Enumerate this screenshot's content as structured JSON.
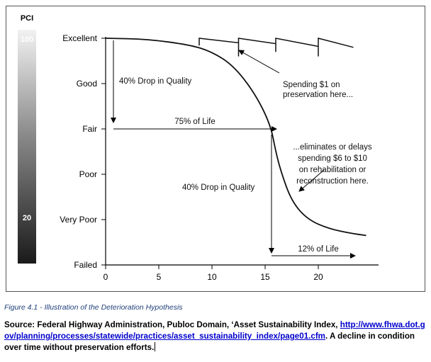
{
  "chart_data": {
    "type": "line",
    "title": "",
    "xlabel": "",
    "ylabel": "",
    "pci_bar": {
      "label": "PCI",
      "top_value": "100",
      "bottom_value": "20"
    },
    "y_categories": [
      "Excellent",
      "Good",
      "Fair",
      "Poor",
      "Very Poor",
      "Failed"
    ],
    "y_range": [
      0,
      5
    ],
    "x_range": [
      0,
      25
    ],
    "x_ticks": [
      0,
      5,
      10,
      15,
      20
    ],
    "x_tick_labels": [
      "0",
      "5",
      "10",
      "15",
      "20"
    ],
    "series": [
      {
        "points": [
          [
            0,
            5
          ],
          [
            4,
            4.98
          ],
          [
            8,
            4.85
          ],
          [
            10,
            4.7
          ],
          [
            12,
            4.4
          ],
          [
            14,
            3.8
          ],
          [
            15.5,
            3.1
          ],
          [
            16,
            2.5
          ],
          [
            16.5,
            2.05
          ],
          [
            17.5,
            1.4
          ],
          [
            19,
            1.0
          ],
          [
            21,
            0.8
          ],
          [
            23,
            0.7
          ],
          [
            24.5,
            0.65
          ]
        ]
      },
      {
        "points": [
          [
            8.8,
            4.84
          ],
          [
            8.8,
            5.0
          ],
          [
            12.5,
            4.9
          ],
          [
            12.5,
            4.6
          ],
          [
            12.5,
            5.0
          ],
          [
            16,
            4.88
          ],
          [
            16,
            4.7
          ],
          [
            16,
            5.0
          ],
          [
            20,
            4.82
          ],
          [
            20,
            4.6
          ],
          [
            20,
            5.0
          ],
          [
            23.3,
            4.8
          ]
        ]
      }
    ],
    "annotations": {
      "drop1": "40% Drop in Quality",
      "life75": "75% of Life",
      "drop2": "40% Drop in Quality",
      "life12": "12% of Life",
      "spending_line1": "Spending $1 on",
      "spending_line2": "preservation here...",
      "elim_line1": "...eliminates or delays",
      "elim_line2": "spending $6 to $10",
      "elim_line3": "on rehabilitation or",
      "elim_line4": "reconstruction here."
    }
  },
  "caption": "Figure 4.1 - Illustration of the Deterioration Hypothesis",
  "source": {
    "prefix": "Source: Federal Highway Administration, Publoc Domain, ‘Asset Sustainability Index,",
    "link": "http://www.fhwa.dot.gov/planning/processes/statewide/practices/asset_sustainability_index/page01.cfm",
    "suffix": ". A decline in condition over time without preservation efforts."
  }
}
